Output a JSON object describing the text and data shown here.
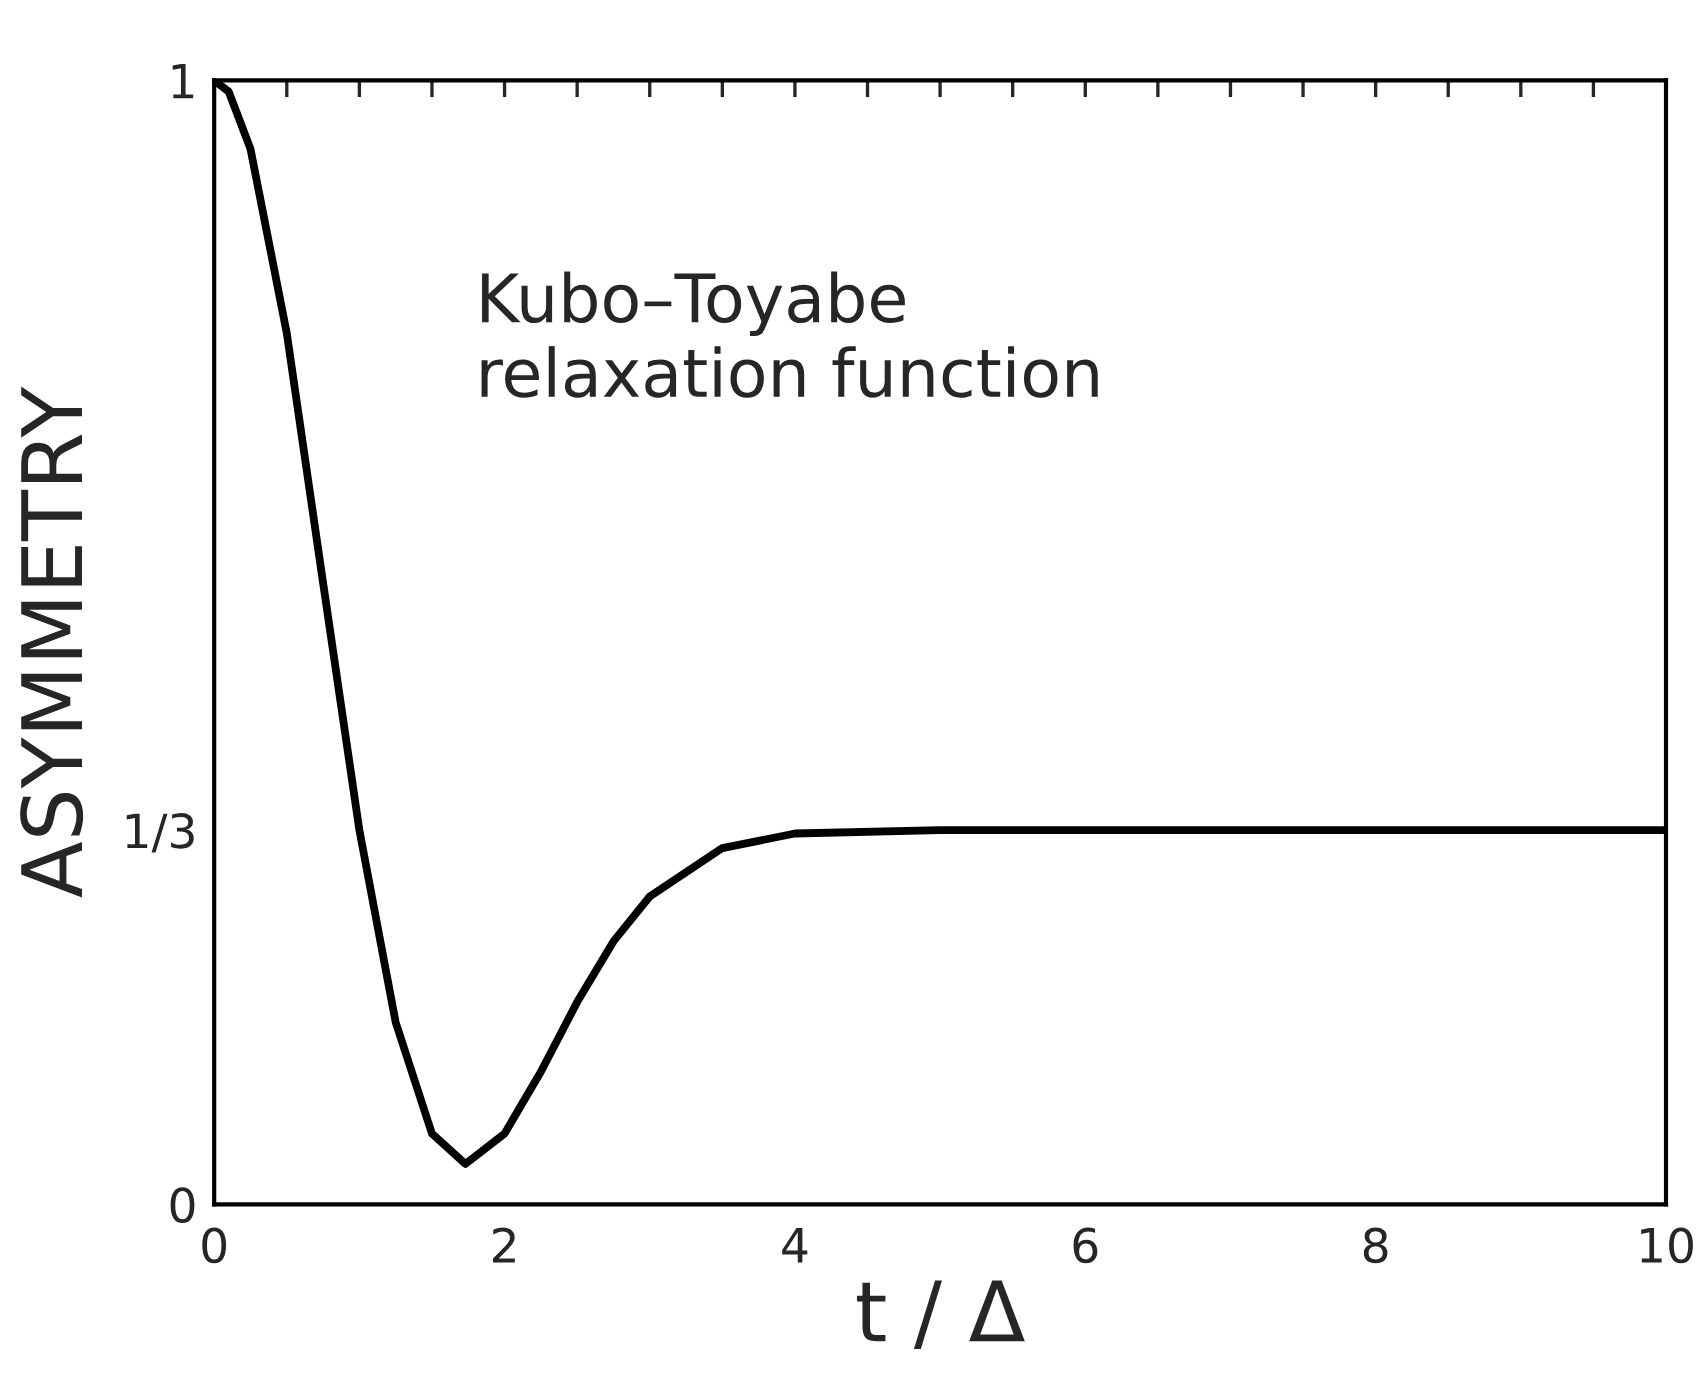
{
  "chart_data": {
    "type": "line",
    "xlabel": "t / Δ",
    "ylabel": "ASYMMETRY",
    "annotations": [
      "Kubo–Toyabe\nrelaxation function"
    ],
    "x": [
      0,
      0.1,
      0.25,
      0.5,
      0.75,
      1,
      1.25,
      1.5,
      1.73,
      2,
      2.25,
      2.5,
      2.75,
      3,
      3.5,
      4,
      5,
      6,
      8,
      10
    ],
    "series": [
      {
        "color": "#000000",
        "values": [
          1,
          0.99,
          0.939,
          0.775,
          0.553,
          0.333,
          0.162,
          0.063,
          0.036,
          0.063,
          0.118,
          0.18,
          0.234,
          0.274,
          0.317,
          0.33,
          0.333,
          0.333,
          0.333,
          0.333
        ]
      }
    ],
    "xlim": [
      0,
      10
    ],
    "ylim": [
      0,
      1
    ],
    "xticks": [
      0,
      {
        "value": 0.5,
        "label": null
      },
      {
        "value": 1,
        "label": null
      },
      {
        "value": 1.5,
        "label": null
      },
      2,
      {
        "value": 2.5,
        "label": null
      },
      {
        "value": 3,
        "label": null
      },
      {
        "value": 3.5,
        "label": null
      },
      4,
      {
        "value": 4.5,
        "label": null
      },
      {
        "value": 5,
        "label": null
      },
      {
        "value": 5.5,
        "label": null
      },
      6,
      {
        "value": 6.5,
        "label": null
      },
      {
        "value": 7,
        "label": null
      },
      {
        "value": 7.5,
        "label": null
      },
      8,
      {
        "value": 8.5,
        "label": null
      },
      {
        "value": 9,
        "label": null
      },
      {
        "value": 9.5,
        "label": null
      },
      10
    ],
    "yticks": [
      0,
      {
        "value": 0.333,
        "label": "1/3"
      },
      1
    ],
    "grid": false,
    "legend": false,
    "marker": "none",
    "line_style": "solid"
  }
}
